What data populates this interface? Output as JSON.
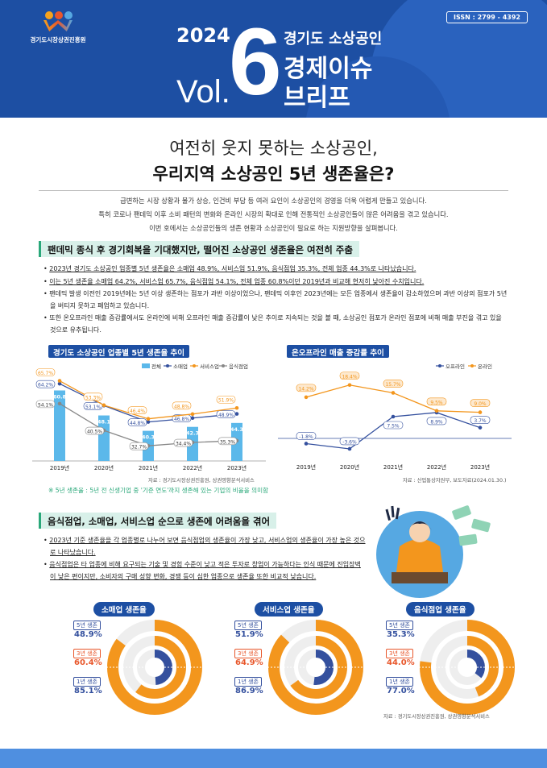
{
  "header": {
    "org": "경기도시장상권진흥원",
    "issn": "ISSN : 2799 - 4392",
    "year": "2024",
    "vol_label": "Vol.",
    "vol_number": "6",
    "subtitle1": "경기도 소상공인",
    "subtitle2": "경제이슈",
    "subtitle3": "브리프"
  },
  "title": {
    "line1": "여전히 웃지 못하는 소상공인,",
    "line2": "우리지역 소상공인 5년 생존율은?"
  },
  "intro": [
    "급변하는 시장 상황과 물가 상승, 인건비 부담 등 여러 요인이 소상공인의 경영을 더욱 어렵게 만들고 있습니다.",
    "특히 코로나 팬데믹 이후 소비 패턴의 변화와 온라인 시장의 확대로 인해 전통적인 소상공인들이 많은 어려움을 겪고 있습니다.",
    "이번 호에서는 소상공인들의 생존 현황과 소상공인이 필요로 하는 지원방향을 살펴봅니다."
  ],
  "section1": {
    "heading": "팬데믹 종식 후 경기회복을 기대했지만, 떨어진 소상공인 생존율은 여전히 주춤",
    "bullets": [
      {
        "ul": "2023년 경기도 소상공인 업종별 5년 생존율은 소매업 48.9%, 서비스업 51.9%, 음식점업 35.3%, 전체 업종 44.3%로 나타났습니다.",
        "rest": ""
      },
      {
        "ul": "이는 5년 생존율 소매업 64.2%, 서비스업 65.7%, 음식점업 54.1%, 전체 업종 60.8%이던 2019년과 비교해 현저히 낮아진 수치입니다.",
        "rest": ""
      },
      {
        "ul": "",
        "rest": "팬데믹 발생 이전인 2019년에는 5년 이상 생존하는 점포가 과반 이상이었으나, 팬데믹 이후인 2023년에는 모든 업종에서 생존율이 감소하였으며 과반 이상의 점포가 5년을 버티지 못하고 폐업하고 있습니다."
      },
      {
        "ul": "",
        "rest": "또한 온오프라인 매출 증감률에서도 온라인에 비해 오프라인 매출 증감률이 낮은 추이로 지속되는 것을 볼 때, 소상공인 점포가 온라인 점포에 비해 매출 부진을 겪고 있을 것으로 유추됩니다."
      }
    ]
  },
  "chart1": {
    "heading": "경기도 소상공인 업종별 5년 생존율 추이",
    "legend": [
      "전체",
      "소매업",
      "서비스업",
      "음식점업"
    ],
    "source": "자료 : 경기도시장상권진흥원, 상권영향분석서비스",
    "note": "※ 5년 생존율 : 5년 전 신생기업 중 '기준 연도'까지 생존해 있는 기업의 비율을 의미함"
  },
  "chart2": {
    "heading": "온오프라인 매출 증감률 추이",
    "legend": [
      "오프라인",
      "온라인"
    ],
    "source": "자료 : 산업통상자원부, 보도자료(2024.01.30.)"
  },
  "chart_data": [
    {
      "type": "bar",
      "title": "경기도 소상공인 업종별 5년 생존율 추이",
      "categories": [
        "2019년",
        "2020년",
        "2021년",
        "2022년",
        "2023년"
      ],
      "series": [
        {
          "name": "전체",
          "kind": "bar",
          "color": "#5bb8ea",
          "values": [
            60.8,
            48.1,
            40.3,
            42.3,
            44.3
          ]
        },
        {
          "name": "소매업",
          "kind": "line",
          "color": "#34509e",
          "values": [
            64.2,
            53.1,
            44.8,
            46.8,
            48.9
          ]
        },
        {
          "name": "서비스업",
          "kind": "line",
          "color": "#f3961d",
          "values": [
            65.7,
            53.3,
            46.4,
            48.8,
            51.9
          ]
        },
        {
          "name": "음식점업",
          "kind": "line",
          "color": "#888888",
          "values": [
            54.1,
            40.5,
            32.7,
            34.4,
            35.3
          ]
        }
      ]
    },
    {
      "type": "line",
      "title": "온오프라인 매출 증감률 추이",
      "categories": [
        "2019년",
        "2020년",
        "2021년",
        "2022년",
        "2023년"
      ],
      "series": [
        {
          "name": "오프라인",
          "color": "#34509e",
          "values": [
            -1.8,
            -3.6,
            7.5,
            8.9,
            3.7
          ]
        },
        {
          "name": "온라인",
          "color": "#f3961d",
          "values": [
            14.2,
            18.4,
            15.7,
            9.5,
            9.0
          ]
        }
      ]
    }
  ],
  "section2": {
    "heading": "음식점업, 소매업, 서비스업 순으로 생존에 어려움을 겪어",
    "bullets": [
      {
        "ul": "2023년 기준 생존율을 각 업종별로 나누어 보면 음식점업의 생존율이 가장 낮고, 서비스업의 생존율이 가장 높은 것으로 나타났습니다.",
        "rest": ""
      },
      {
        "ul": "음식점업은 타 업종에 비해 요구되는 기술 및 경험 수준이 낮고 적은 투자로 창업이 가능하다는 인식 때문에 진입장벽이 낮은 편이지만, 소비자의 구매 성향 변화, 경쟁 등이 심한 업종으로 생존율 또한 비교적 낮습니다.",
        "rest": ""
      }
    ]
  },
  "donuts": [
    {
      "title": "소매업 생존율",
      "rows": [
        {
          "label": "5년 생존",
          "value": "48.9%",
          "v": 48.9
        },
        {
          "label": "3년 생존",
          "value": "60.4%",
          "v": 60.4
        },
        {
          "label": "1년 생존",
          "value": "85.1%",
          "v": 85.1
        }
      ]
    },
    {
      "title": "서비스업 생존율",
      "rows": [
        {
          "label": "5년 생존",
          "value": "51.9%",
          "v": 51.9
        },
        {
          "label": "3년 생존",
          "value": "64.9%",
          "v": 64.9
        },
        {
          "label": "1년 생존",
          "value": "86.9%",
          "v": 86.9
        }
      ]
    },
    {
      "title": "음식점업 생존율",
      "rows": [
        {
          "label": "5년 생존",
          "value": "35.3%",
          "v": 35.3
        },
        {
          "label": "3년 생존",
          "value": "44.0%",
          "v": 44.0
        },
        {
          "label": "1년 생존",
          "value": "77.0%",
          "v": 77.0
        }
      ]
    }
  ],
  "donut_source": "자료 : 경기도시장상권진흥원, 상권영향분석서비스",
  "colors": {
    "primary": "#1d4fa3",
    "accent_green": "#2aa87a",
    "orange": "#f3961d",
    "navy": "#34509e",
    "light_blue": "#5bb8ea"
  }
}
